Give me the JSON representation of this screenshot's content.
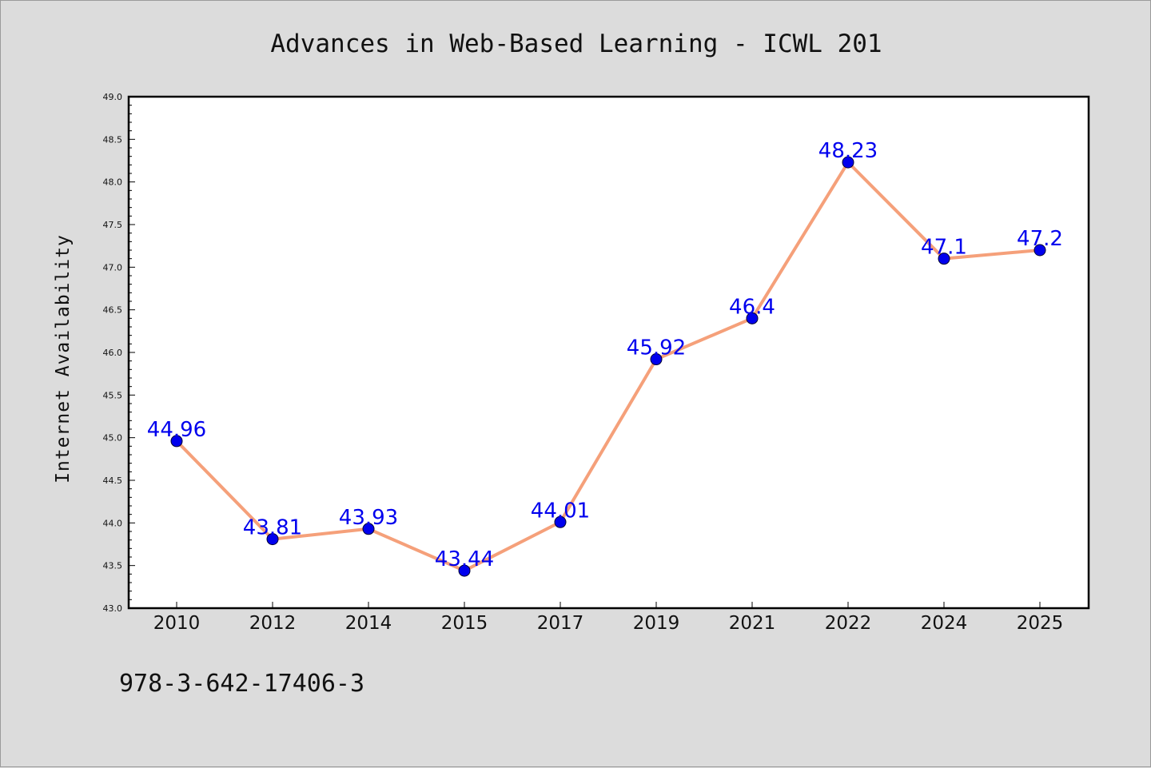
{
  "chart_data": {
    "type": "line",
    "title": "Advances in Web-Based Learning - ICWL 201",
    "xlabel": "",
    "ylabel": "Internet Availability",
    "categories": [
      "2010",
      "2012",
      "2014",
      "2015",
      "2017",
      "2019",
      "2021",
      "2022",
      "2024",
      "2025"
    ],
    "series": [
      {
        "values": [
          44.96,
          43.81,
          43.93,
          43.44,
          44.01,
          45.92,
          46.4,
          48.23,
          47.1,
          47.2
        ],
        "data_labels": [
          "44.96",
          "43.81",
          "43.93",
          "43.44",
          "44.01",
          "45.92",
          "46.4",
          "48.23",
          "47.1",
          "47.2"
        ],
        "line_color": "#f5a07a",
        "marker_color": "#0000ee",
        "label_color": "#0000ee"
      }
    ],
    "ylim": [
      43.0,
      49.0
    ],
    "yticks": [
      "43.0",
      "43.5",
      "44.0",
      "44.5",
      "45.0",
      "45.5",
      "46.0",
      "46.5",
      "47.0",
      "47.5",
      "48.0",
      "48.5",
      "49.0"
    ],
    "grid": false,
    "legend": "none",
    "footnote": "978-3-642-17406-3"
  },
  "colors": {
    "background": "#dcdcdc",
    "plot_background": "#ffffff"
  }
}
